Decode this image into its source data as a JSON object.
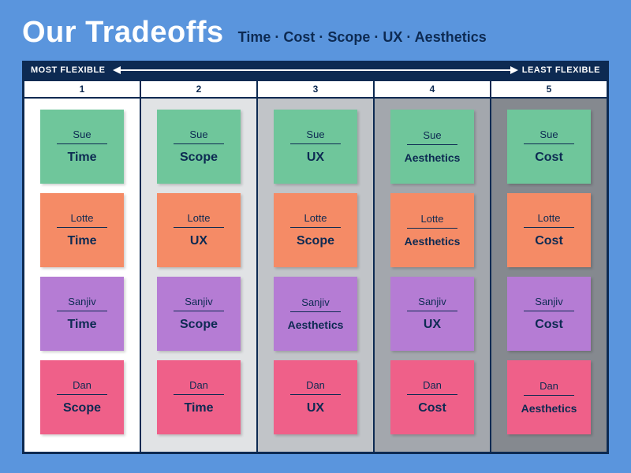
{
  "page": {
    "background_color": "#5a95dd",
    "title": "Our Tradeoffs",
    "title_color": "#ffffff",
    "subtitle": "Time · Cost · Scope · UX · Aesthetics",
    "subtitle_color": "#0d2a52"
  },
  "board": {
    "border_color": "#0d2a52",
    "scale_bg": "#0d2a52",
    "scale_left_label": "MOST FLEXIBLE",
    "scale_right_label": "LEAST FLEXIBLE",
    "columns": [
      {
        "num": "1",
        "bg": "#ffffff"
      },
      {
        "num": "2",
        "bg": "#e1e3e5"
      },
      {
        "num": "3",
        "bg": "#c1c4c8"
      },
      {
        "num": "4",
        "bg": "#a3a7ad"
      },
      {
        "num": "5",
        "bg": "#85898f"
      }
    ],
    "header_text_color": "#0d2a52"
  },
  "people": [
    {
      "name": "Sue",
      "color": "#6fc69b"
    },
    {
      "name": "Lotte",
      "color": "#f58b66"
    },
    {
      "name": "Sanjiv",
      "color": "#b57cd4"
    },
    {
      "name": "Dan",
      "color": "#ef6089"
    }
  ],
  "card_text_color": "#0d2a52",
  "grid": [
    [
      "Time",
      "Scope",
      "UX",
      "Aesthetics",
      "Cost"
    ],
    [
      "Time",
      "UX",
      "Scope",
      "Aesthetics",
      "Cost"
    ],
    [
      "Time",
      "Scope",
      "Aesthetics",
      "UX",
      "Cost"
    ],
    [
      "Scope",
      "Time",
      "UX",
      "Cost",
      "Aesthetics"
    ]
  ]
}
